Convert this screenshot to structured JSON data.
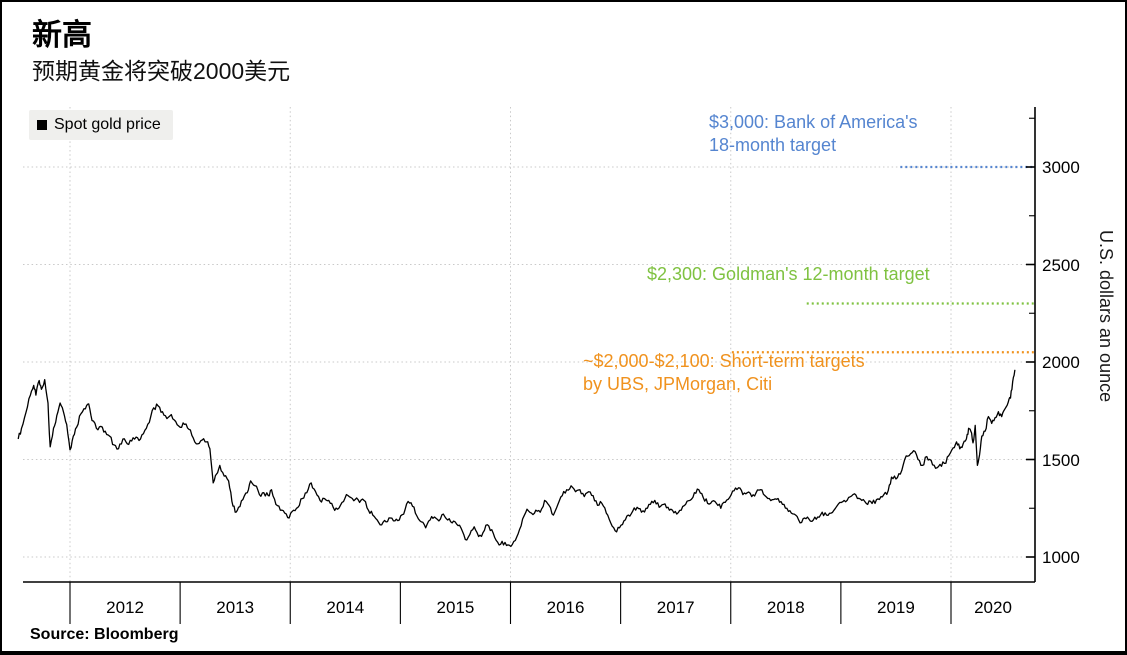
{
  "header": {
    "title": "新高",
    "subtitle": "预期黄金将突破2000美元"
  },
  "source": {
    "text": "Source: Bloomberg"
  },
  "chart_data": {
    "type": "line",
    "title": "新高",
    "subtitle": "预期黄金将突破2000美元",
    "ylabel": "U.S. dollars an ounce",
    "grid": "dotted",
    "x_tick_years": [
      "2012",
      "2013",
      "2014",
      "2015",
      "2016",
      "2017",
      "2018",
      "2019",
      "2020"
    ],
    "x_gridline_years": [
      2012,
      2014,
      2016,
      2018,
      2020
    ],
    "y_ticks": [
      1000,
      1500,
      2000,
      2500,
      3000
    ],
    "y_minor_ticks": [
      1250,
      1750,
      2250,
      2750,
      3250
    ],
    "y_axis_range": [
      870,
      3310
    ],
    "x_axis_range": [
      2011.5,
      2020.77
    ],
    "annotations": [
      {
        "value": 3000,
        "color": "#5585d0",
        "text_line1": "$3,000: Bank of America's",
        "text_line2": "18-month target",
        "line_start_year": 2019.54
      },
      {
        "value": 2300,
        "color": "#7fc241",
        "text_line1": "$2,300: Goldman's 12-month target",
        "line_start_year": 2018.69
      },
      {
        "value": 2050,
        "color": "#f0921e",
        "text_line1": "~$2,000-$2,100: Short-term targets",
        "text_line2": "by UBS, JPMorgan, Citi",
        "line_start_year": 2018.01
      }
    ],
    "series": [
      {
        "name": "Spot gold price",
        "color": "#000000",
        "points": [
          [
            2011.53,
            1605
          ],
          [
            2011.56,
            1660
          ],
          [
            2011.6,
            1740
          ],
          [
            2011.64,
            1830
          ],
          [
            2011.67,
            1880
          ],
          [
            2011.69,
            1830
          ],
          [
            2011.72,
            1905
          ],
          [
            2011.74,
            1860
          ],
          [
            2011.77,
            1910
          ],
          [
            2011.8,
            1790
          ],
          [
            2011.82,
            1565
          ],
          [
            2011.85,
            1660
          ],
          [
            2011.88,
            1725
          ],
          [
            2011.91,
            1790
          ],
          [
            2011.94,
            1745
          ],
          [
            2011.97,
            1680
          ],
          [
            2012.0,
            1550
          ],
          [
            2012.03,
            1620
          ],
          [
            2012.06,
            1665
          ],
          [
            2012.1,
            1735
          ],
          [
            2012.14,
            1760
          ],
          [
            2012.17,
            1785
          ],
          [
            2012.2,
            1700
          ],
          [
            2012.24,
            1660
          ],
          [
            2012.28,
            1670
          ],
          [
            2012.32,
            1645
          ],
          [
            2012.36,
            1620
          ],
          [
            2012.4,
            1575
          ],
          [
            2012.44,
            1555
          ],
          [
            2012.48,
            1605
          ],
          [
            2012.52,
            1580
          ],
          [
            2012.56,
            1595
          ],
          [
            2012.6,
            1615
          ],
          [
            2012.64,
            1605
          ],
          [
            2012.68,
            1650
          ],
          [
            2012.72,
            1690
          ],
          [
            2012.76,
            1765
          ],
          [
            2012.8,
            1775
          ],
          [
            2012.84,
            1745
          ],
          [
            2012.88,
            1710
          ],
          [
            2012.92,
            1730
          ],
          [
            2012.96,
            1695
          ],
          [
            2013.0,
            1665
          ],
          [
            2013.04,
            1680
          ],
          [
            2013.08,
            1655
          ],
          [
            2013.12,
            1610
          ],
          [
            2013.16,
            1580
          ],
          [
            2013.2,
            1600
          ],
          [
            2013.24,
            1590
          ],
          [
            2013.27,
            1555
          ],
          [
            2013.3,
            1380
          ],
          [
            2013.33,
            1425
          ],
          [
            2013.36,
            1470
          ],
          [
            2013.4,
            1415
          ],
          [
            2013.44,
            1390
          ],
          [
            2013.47,
            1285
          ],
          [
            2013.5,
            1230
          ],
          [
            2013.53,
            1255
          ],
          [
            2013.57,
            1295
          ],
          [
            2013.61,
            1330
          ],
          [
            2013.64,
            1390
          ],
          [
            2013.68,
            1365
          ],
          [
            2013.72,
            1320
          ],
          [
            2013.76,
            1330
          ],
          [
            2013.8,
            1315
          ],
          [
            2013.83,
            1345
          ],
          [
            2013.87,
            1270
          ],
          [
            2013.91,
            1240
          ],
          [
            2013.95,
            1225
          ],
          [
            2013.99,
            1200
          ],
          [
            2014.03,
            1240
          ],
          [
            2014.07,
            1255
          ],
          [
            2014.11,
            1300
          ],
          [
            2014.15,
            1330
          ],
          [
            2014.19,
            1380
          ],
          [
            2014.23,
            1335
          ],
          [
            2014.27,
            1290
          ],
          [
            2014.31,
            1300
          ],
          [
            2014.35,
            1290
          ],
          [
            2014.39,
            1255
          ],
          [
            2014.43,
            1245
          ],
          [
            2014.47,
            1280
          ],
          [
            2014.51,
            1320
          ],
          [
            2014.55,
            1305
          ],
          [
            2014.59,
            1295
          ],
          [
            2014.63,
            1280
          ],
          [
            2014.67,
            1290
          ],
          [
            2014.71,
            1240
          ],
          [
            2014.75,
            1215
          ],
          [
            2014.79,
            1190
          ],
          [
            2014.83,
            1165
          ],
          [
            2014.87,
            1180
          ],
          [
            2014.91,
            1200
          ],
          [
            2014.95,
            1185
          ],
          [
            2014.99,
            1190
          ],
          [
            2015.03,
            1220
          ],
          [
            2015.07,
            1285
          ],
          [
            2015.11,
            1260
          ],
          [
            2015.15,
            1210
          ],
          [
            2015.19,
            1180
          ],
          [
            2015.23,
            1150
          ],
          [
            2015.27,
            1190
          ],
          [
            2015.31,
            1205
          ],
          [
            2015.35,
            1185
          ],
          [
            2015.39,
            1220
          ],
          [
            2015.43,
            1190
          ],
          [
            2015.47,
            1175
          ],
          [
            2015.51,
            1170
          ],
          [
            2015.55,
            1150
          ],
          [
            2015.59,
            1090
          ],
          [
            2015.63,
            1115
          ],
          [
            2015.67,
            1155
          ],
          [
            2015.71,
            1105
          ],
          [
            2015.75,
            1125
          ],
          [
            2015.79,
            1165
          ],
          [
            2015.83,
            1140
          ],
          [
            2015.87,
            1085
          ],
          [
            2015.91,
            1065
          ],
          [
            2015.95,
            1075
          ],
          [
            2015.99,
            1060
          ],
          [
            2016.03,
            1080
          ],
          [
            2016.07,
            1120
          ],
          [
            2016.11,
            1195
          ],
          [
            2016.15,
            1245
          ],
          [
            2016.19,
            1225
          ],
          [
            2016.23,
            1240
          ],
          [
            2016.27,
            1230
          ],
          [
            2016.31,
            1290
          ],
          [
            2016.35,
            1265
          ],
          [
            2016.39,
            1215
          ],
          [
            2016.43,
            1270
          ],
          [
            2016.47,
            1315
          ],
          [
            2016.51,
            1345
          ],
          [
            2016.55,
            1365
          ],
          [
            2016.59,
            1335
          ],
          [
            2016.63,
            1345
          ],
          [
            2016.67,
            1310
          ],
          [
            2016.71,
            1335
          ],
          [
            2016.75,
            1315
          ],
          [
            2016.79,
            1265
          ],
          [
            2016.83,
            1275
          ],
          [
            2016.87,
            1225
          ],
          [
            2016.91,
            1175
          ],
          [
            2016.95,
            1135
          ],
          [
            2016.99,
            1150
          ],
          [
            2017.03,
            1185
          ],
          [
            2017.07,
            1215
          ],
          [
            2017.11,
            1235
          ],
          [
            2017.15,
            1255
          ],
          [
            2017.19,
            1230
          ],
          [
            2017.23,
            1250
          ],
          [
            2017.27,
            1270
          ],
          [
            2017.31,
            1290
          ],
          [
            2017.35,
            1255
          ],
          [
            2017.39,
            1270
          ],
          [
            2017.43,
            1255
          ],
          [
            2017.47,
            1240
          ],
          [
            2017.51,
            1220
          ],
          [
            2017.55,
            1240
          ],
          [
            2017.59,
            1270
          ],
          [
            2017.63,
            1290
          ],
          [
            2017.67,
            1330
          ],
          [
            2017.71,
            1345
          ],
          [
            2017.75,
            1305
          ],
          [
            2017.79,
            1275
          ],
          [
            2017.83,
            1285
          ],
          [
            2017.87,
            1275
          ],
          [
            2017.91,
            1250
          ],
          [
            2017.95,
            1280
          ],
          [
            2017.99,
            1305
          ],
          [
            2018.03,
            1340
          ],
          [
            2018.07,
            1355
          ],
          [
            2018.11,
            1320
          ],
          [
            2018.15,
            1330
          ],
          [
            2018.19,
            1310
          ],
          [
            2018.23,
            1330
          ],
          [
            2018.27,
            1345
          ],
          [
            2018.31,
            1315
          ],
          [
            2018.35,
            1300
          ],
          [
            2018.39,
            1295
          ],
          [
            2018.43,
            1300
          ],
          [
            2018.47,
            1270
          ],
          [
            2018.51,
            1250
          ],
          [
            2018.55,
            1225
          ],
          [
            2018.59,
            1215
          ],
          [
            2018.63,
            1175
          ],
          [
            2018.67,
            1200
          ],
          [
            2018.71,
            1195
          ],
          [
            2018.75,
            1190
          ],
          [
            2018.79,
            1205
          ],
          [
            2018.83,
            1230
          ],
          [
            2018.87,
            1215
          ],
          [
            2018.91,
            1225
          ],
          [
            2018.95,
            1250
          ],
          [
            2018.99,
            1280
          ],
          [
            2019.03,
            1290
          ],
          [
            2019.07,
            1305
          ],
          [
            2019.11,
            1320
          ],
          [
            2019.15,
            1300
          ],
          [
            2019.19,
            1290
          ],
          [
            2019.23,
            1275
          ],
          [
            2019.27,
            1285
          ],
          [
            2019.31,
            1275
          ],
          [
            2019.35,
            1295
          ],
          [
            2019.39,
            1320
          ],
          [
            2019.43,
            1340
          ],
          [
            2019.46,
            1410
          ],
          [
            2019.5,
            1400
          ],
          [
            2019.54,
            1425
          ],
          [
            2019.58,
            1500
          ],
          [
            2019.62,
            1520
          ],
          [
            2019.66,
            1545
          ],
          [
            2019.7,
            1500
          ],
          [
            2019.74,
            1470
          ],
          [
            2019.78,
            1515
          ],
          [
            2019.82,
            1495
          ],
          [
            2019.86,
            1455
          ],
          [
            2019.9,
            1475
          ],
          [
            2019.94,
            1480
          ],
          [
            2019.98,
            1520
          ],
          [
            2020.02,
            1560
          ],
          [
            2020.05,
            1590
          ],
          [
            2020.08,
            1555
          ],
          [
            2020.11,
            1580
          ],
          [
            2020.14,
            1605
          ],
          [
            2020.16,
            1660
          ],
          [
            2020.18,
            1645
          ],
          [
            2020.2,
            1585
          ],
          [
            2020.22,
            1675
          ],
          [
            2020.24,
            1470
          ],
          [
            2020.26,
            1525
          ],
          [
            2020.28,
            1620
          ],
          [
            2020.31,
            1645
          ],
          [
            2020.34,
            1720
          ],
          [
            2020.37,
            1685
          ],
          [
            2020.4,
            1715
          ],
          [
            2020.43,
            1745
          ],
          [
            2020.46,
            1720
          ],
          [
            2020.49,
            1760
          ],
          [
            2020.52,
            1795
          ],
          [
            2020.54,
            1815
          ],
          [
            2020.56,
            1900
          ],
          [
            2020.58,
            1960
          ]
        ]
      }
    ]
  }
}
